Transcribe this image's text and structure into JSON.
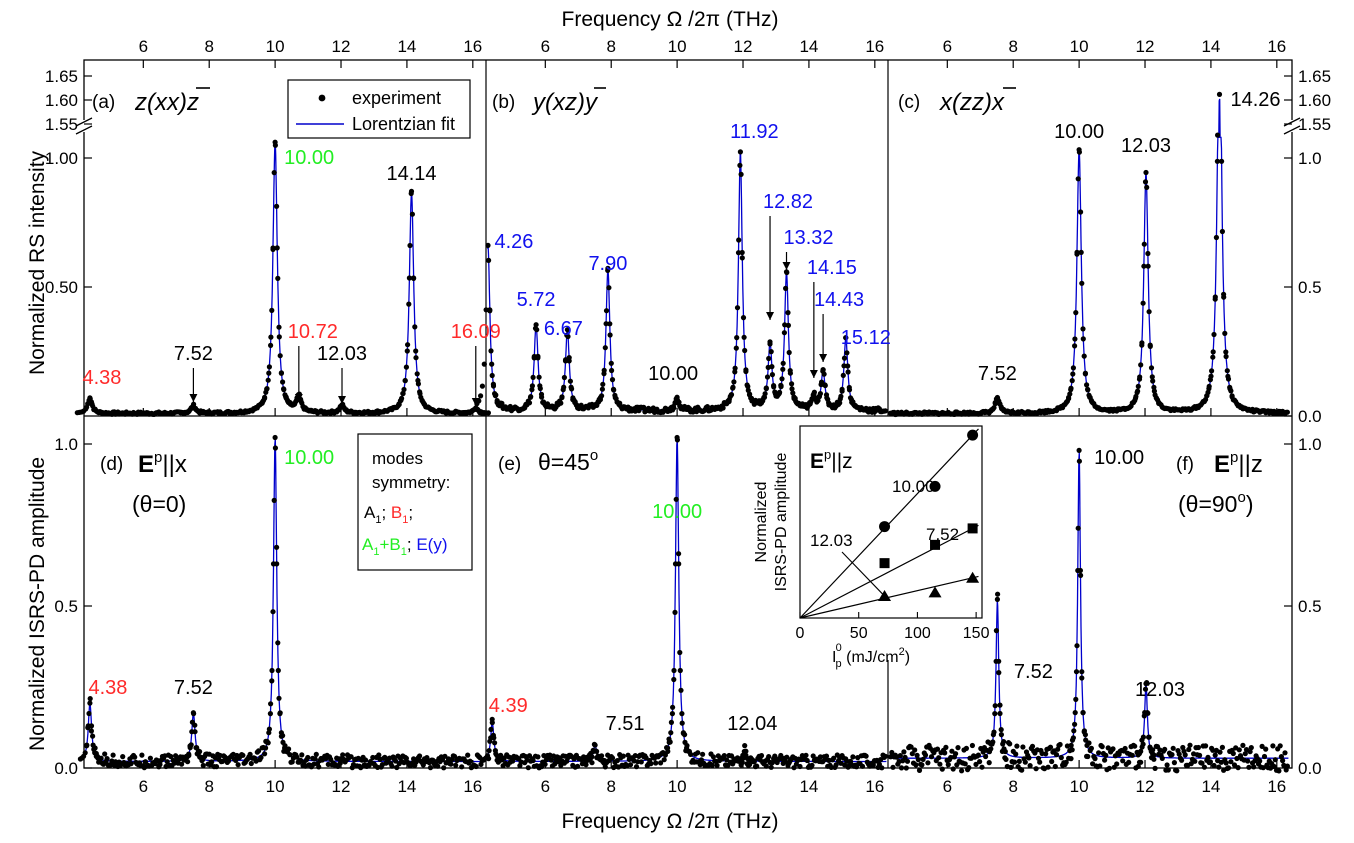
{
  "figure": {
    "top_axis_label": "Frequency Ω /2π (THz)",
    "bottom_axis_label": "Frequency Ω /2π  (THz)",
    "ylabel_top": "Normalized RS intensity",
    "ylabel_bottom": "Normalized ISRS-PD amplitude"
  },
  "colors": {
    "black": "#000000",
    "red": "#ff2a2a",
    "green": "#22ee22",
    "blue": "#1111ee",
    "fit": "#0000cc"
  },
  "legend": {
    "experiment": "experiment",
    "fit": "Lorentzian fit"
  },
  "symmetry_box": {
    "title1": "modes",
    "title2": "symmetry:",
    "a1": "A",
    "a1_sub": "1",
    "sep1": "; ",
    "b1": "B",
    "b1_sub": "1",
    "sep2": ";",
    "ab_a": "A",
    "ab_a_sub": "1",
    "ab_plus": "+B",
    "ab_b_sub": "1",
    "sep3": "; ",
    "ey": "E(y)"
  },
  "panels": {
    "a": {
      "label": "(a)",
      "geometry": "z(xx)z"
    },
    "b": {
      "label": "(b)",
      "geometry": "y(xz)y"
    },
    "c": {
      "label": "(c)",
      "geometry": "x(zz)x"
    },
    "d": {
      "label": "(d)",
      "field_E": "E",
      "field_sup": "p",
      "field_rest": "||x",
      "angle": "(θ=0)"
    },
    "e": {
      "label": "(e)",
      "angle_text": "θ=45",
      "angle_sup": "o"
    },
    "f": {
      "label": "(f)",
      "field_E": "E",
      "field_sup": "p",
      "field_rest": "||z",
      "angle_text": "(θ=90",
      "angle_sup": "o",
      "angle_close": ")"
    }
  },
  "inset": {
    "field_E": "E",
    "field_sup": "p",
    "field_rest": "||z",
    "ylabel1": "Normalized",
    "ylabel2": "ISRS-PD amplitude",
    "xlabel": "I",
    "xlabel_sub": "p",
    "xlabel_sup": "0",
    "xlabel_rest": " (mJ/cm",
    "xlabel_sup2": "2",
    "xlabel_close": ")"
  },
  "chart_data": [
    {
      "panel": "a",
      "type": "line",
      "title": "z(xx)z",
      "x_ticks": [
        6,
        8,
        10,
        12,
        14,
        16
      ],
      "xlim": [
        4.2,
        16.4
      ],
      "y_ticks_left": [
        "0.50",
        "1.00",
        "1.55",
        "1.60",
        "1.65"
      ],
      "ylim": [
        0,
        1.65
      ],
      "axis_break": [
        1.05,
        1.55
      ],
      "peaks": [
        {
          "freq": 4.38,
          "height": 0.06,
          "label": "4.38",
          "color": "red"
        },
        {
          "freq": 7.52,
          "height": 0.03,
          "label": "7.52",
          "color": "black"
        },
        {
          "freq": 10.0,
          "height": 1.05,
          "label": "10.00",
          "color": "green"
        },
        {
          "freq": 10.72,
          "height": 0.06,
          "label": "10.72",
          "color": "red"
        },
        {
          "freq": 12.03,
          "height": 0.03,
          "label": "12.03",
          "color": "black"
        },
        {
          "freq": 14.14,
          "height": 0.86,
          "label": "14.14",
          "color": "black"
        },
        {
          "freq": 16.09,
          "height": 0.02,
          "label": "16.09",
          "color": "red"
        }
      ]
    },
    {
      "panel": "b",
      "type": "line",
      "title": "y(xz)y",
      "x_ticks": [
        6,
        8,
        10,
        12,
        14,
        16
      ],
      "xlim": [
        4.2,
        16.4
      ],
      "peaks": [
        {
          "freq": 4.26,
          "height": 0.64,
          "label": "4.26",
          "color": "blue"
        },
        {
          "freq": 5.72,
          "height": 0.33,
          "label": "5.72",
          "color": "blue"
        },
        {
          "freq": 6.67,
          "height": 0.31,
          "label": "6.67",
          "color": "blue"
        },
        {
          "freq": 7.9,
          "height": 0.55,
          "label": "7.90",
          "color": "blue"
        },
        {
          "freq": 10.0,
          "height": 0.05,
          "label": "10.00",
          "color": "black"
        },
        {
          "freq": 11.92,
          "height": 1.0,
          "label": "11.92",
          "color": "blue"
        },
        {
          "freq": 12.82,
          "height": 0.25,
          "label": "12.82",
          "color": "blue"
        },
        {
          "freq": 13.32,
          "height": 0.53,
          "label": "13.32",
          "color": "blue"
        },
        {
          "freq": 14.15,
          "height": 0.05,
          "label": "14.15",
          "color": "blue"
        },
        {
          "freq": 14.43,
          "height": 0.15,
          "label": "14.43",
          "color": "blue"
        },
        {
          "freq": 15.12,
          "height": 0.28,
          "label": "15.12",
          "color": "blue"
        }
      ]
    },
    {
      "panel": "c",
      "type": "line",
      "title": "x(zz)x",
      "x_ticks": [
        6,
        8,
        10,
        12,
        14,
        16
      ],
      "xlim": [
        4.2,
        16.4
      ],
      "y_ticks_right": [
        "0.0",
        "0.5",
        "1.0",
        "1.55",
        "1.60",
        "1.65"
      ],
      "peaks": [
        {
          "freq": 7.52,
          "height": 0.06,
          "label": "7.52",
          "color": "black"
        },
        {
          "freq": 10.0,
          "height": 1.02,
          "label": "10.00",
          "color": "black"
        },
        {
          "freq": 12.03,
          "height": 0.93,
          "label": "12.03",
          "color": "black"
        },
        {
          "freq": 14.26,
          "height": 1.6,
          "label": "14.26",
          "color": "black"
        }
      ]
    },
    {
      "panel": "d",
      "type": "line",
      "x_ticks": [
        6,
        8,
        10,
        12,
        14,
        16
      ],
      "xlim": [
        4.2,
        16.4
      ],
      "y_ticks_left": [
        "0.0",
        "0.5",
        "1.0"
      ],
      "ylim": [
        0,
        1.05
      ],
      "peaks": [
        {
          "freq": 4.38,
          "height": 0.18,
          "label": "4.38",
          "color": "red"
        },
        {
          "freq": 7.52,
          "height": 0.15,
          "label": "7.52",
          "color": "black"
        },
        {
          "freq": 10.0,
          "height": 1.0,
          "label": "10.00",
          "color": "green"
        }
      ]
    },
    {
      "panel": "e",
      "type": "line",
      "x_ticks": [
        6,
        8,
        10,
        12,
        14,
        16
      ],
      "xlim": [
        4.2,
        16.4
      ],
      "peaks": [
        {
          "freq": 4.39,
          "height": 0.12,
          "label": "4.39",
          "color": "red"
        },
        {
          "freq": 7.51,
          "height": 0.05,
          "label": "7.51",
          "color": "black"
        },
        {
          "freq": 10.0,
          "height": 1.0,
          "label": "10.00",
          "color": "green"
        },
        {
          "freq": 12.04,
          "height": 0.03,
          "label": "12.04",
          "color": "black"
        }
      ]
    },
    {
      "panel": "f",
      "type": "line",
      "x_ticks": [
        6,
        8,
        10,
        12,
        14,
        16
      ],
      "xlim": [
        4.2,
        16.4
      ],
      "y_ticks_right": [
        "0.0",
        "0.5",
        "1.0"
      ],
      "peaks": [
        {
          "freq": 7.52,
          "height": 0.49,
          "label": "7.52",
          "color": "black"
        },
        {
          "freq": 10.0,
          "height": 0.95,
          "label": "10.00",
          "color": "black"
        },
        {
          "freq": 12.03,
          "height": 0.23,
          "label": "12.03",
          "color": "black"
        }
      ]
    },
    {
      "panel": "inset",
      "type": "scatter",
      "x_ticks": [
        "0",
        "50",
        "100",
        "150"
      ],
      "xlim": [
        0,
        155
      ],
      "ylim": [
        0,
        1.05
      ],
      "series": [
        {
          "name": "10.00",
          "marker": "circle",
          "x": [
            72,
            115,
            147
          ],
          "y": [
            0.5,
            0.72,
            1.0
          ]
        },
        {
          "name": "7.52",
          "marker": "square",
          "x": [
            72,
            115,
            147
          ],
          "y": [
            0.3,
            0.4,
            0.49
          ]
        },
        {
          "name": "12.03",
          "marker": "triangle",
          "x": [
            72,
            115,
            147
          ],
          "y": [
            0.12,
            0.14,
            0.22
          ]
        }
      ]
    }
  ]
}
